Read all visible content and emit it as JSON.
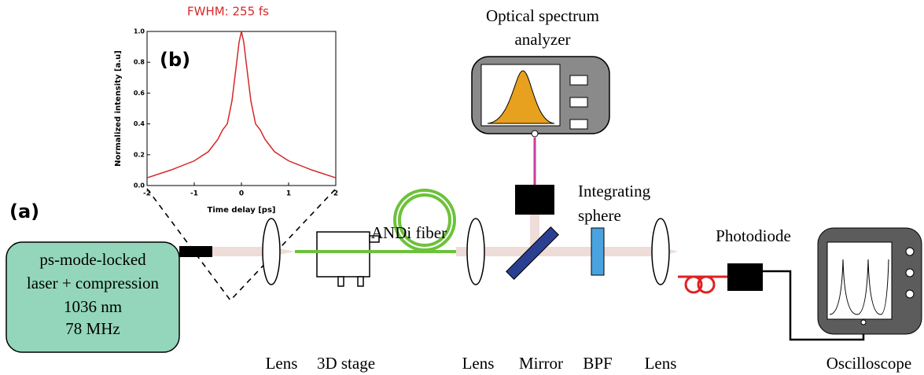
{
  "labels": {
    "panel_a": "(a)",
    "laser": [
      "ps-mode-locked",
      "laser + compression",
      "1036 nm",
      "78 MHz"
    ],
    "andi": "ANDi fiber",
    "osa": [
      "Optical spectrum",
      "analyzer"
    ],
    "sphere": [
      "Integrating",
      "sphere"
    ],
    "photodiode": "Photodiode",
    "bottom": [
      "Lens",
      "3D stage",
      "Lens",
      "Mirror",
      "BPF",
      "Lens",
      "Oscilloscope"
    ]
  },
  "inset": {
    "type": "line",
    "panel": "(b)",
    "title": "FWHM: 255 fs",
    "x_label": "Time delay [ps]",
    "y_label": "Normalized intensity [a.u]",
    "x": [
      -2,
      -1.5,
      -1,
      -0.7,
      -0.5,
      -0.4,
      -0.3,
      -0.2,
      -0.1,
      -0.05,
      0,
      0.05,
      0.1,
      0.2,
      0.3,
      0.4,
      0.5,
      0.7,
      1,
      1.5,
      2
    ],
    "values": [
      0.05,
      0.1,
      0.16,
      0.22,
      0.3,
      0.36,
      0.4,
      0.55,
      0.8,
      0.93,
      1.0,
      0.93,
      0.8,
      0.55,
      0.4,
      0.36,
      0.3,
      0.22,
      0.16,
      0.1,
      0.05
    ],
    "color": "#d62728",
    "xlim": [
      -2,
      2
    ],
    "ylim": [
      0,
      1
    ],
    "xticks": [
      -2,
      -1,
      0,
      1,
      2
    ],
    "yticks": [
      {
        "value": 0,
        "label": "0.0"
      },
      0.2,
      0.4,
      0.6,
      0.8,
      {
        "value": 1,
        "label": "1.0"
      }
    ]
  }
}
